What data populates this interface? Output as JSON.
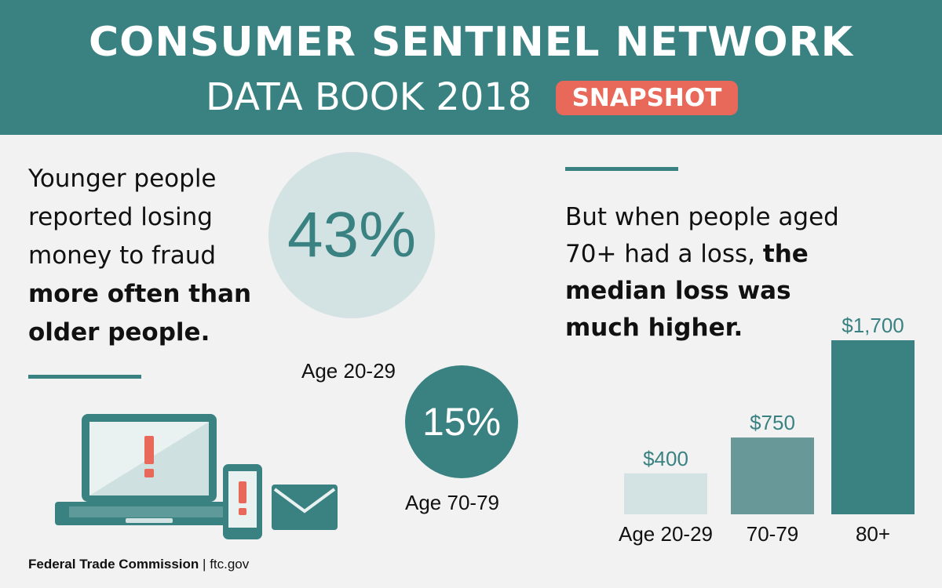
{
  "header": {
    "title_line1": "CONSUMER SENTINEL NETWORK",
    "title_line2": "DATA BOOK 2018",
    "badge": "SNAPSHOT"
  },
  "left_panel": {
    "text_normal": "Younger people reported losing money to fraud",
    "text_bold": "more often than older people."
  },
  "right_panel": {
    "text_normal": "But when people aged 70+ had a loss,",
    "text_bold": "the median loss was much higher."
  },
  "footer": {
    "org": "Federal Trade Commission",
    "separator": "|",
    "site": "ftc.gov"
  },
  "colors": {
    "teal": "#3a8282",
    "light_teal": "#d3e2e2",
    "mid_teal": "#689898",
    "coral": "#e8695a",
    "background": "#f2f2f2"
  },
  "icons": [
    "laptop-alert-icon",
    "phone-alert-icon",
    "envelope-icon"
  ],
  "chart_data": [
    {
      "type": "bubble",
      "categories": [
        "Age 20-29",
        "Age 70-79"
      ],
      "values": [
        43,
        15
      ],
      "labels": [
        "43%",
        "15%"
      ]
    },
    {
      "type": "bar",
      "categories": [
        "Age 20-29",
        "70-79",
        "80+"
      ],
      "values": [
        400,
        750,
        1700
      ],
      "labels": [
        "$400",
        "$750",
        "$1,700"
      ],
      "ylim": [
        0,
        1700
      ]
    }
  ]
}
